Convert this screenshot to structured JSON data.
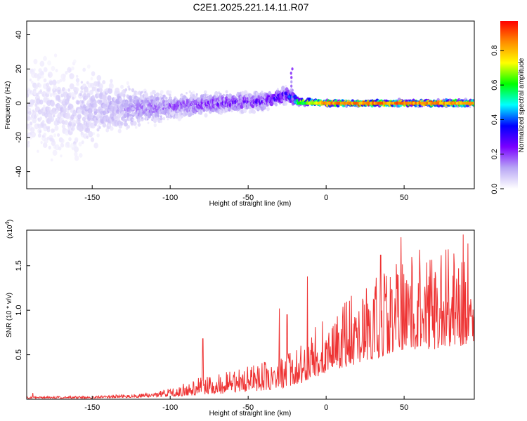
{
  "title": "C2E1.2025.221.14.11.R07",
  "chart_data": [
    {
      "type": "heatmap",
      "xlabel": "Height of straight line (km)",
      "ylabel": "Frequency (Hz)",
      "xlim": [
        -192,
        95
      ],
      "ylim": [
        -50,
        48
      ],
      "xticks": [
        -150,
        -100,
        -50,
        0,
        50
      ],
      "yticks": [
        -40,
        -20,
        0,
        20,
        40
      ],
      "colorbar": {
        "label": "Normalized spectral amplitude",
        "range": [
          0,
          0.97
        ],
        "ticks": [
          "0.0",
          "0.2",
          "0.4",
          "0.6",
          "0.8"
        ],
        "colormap": [
          "#ffffff",
          "#b8a6f5",
          "#7a00ff",
          "#0000ff",
          "#00ffff",
          "#00ff00",
          "#ffff00",
          "#ff8c00",
          "#ff0000"
        ]
      },
      "band_center_x": [
        -190,
        -160,
        -130,
        -100,
        -70,
        -40,
        -25,
        -18,
        0,
        50,
        93
      ],
      "band_center_y": [
        -2,
        -4,
        -3,
        -2,
        0,
        1,
        5,
        1,
        0,
        0,
        0
      ],
      "band_halfwidth_y": [
        45,
        40,
        18,
        10,
        8,
        7,
        6,
        3,
        2,
        2,
        2.5
      ],
      "band_peak_amplitude": [
        0.05,
        0.07,
        0.12,
        0.18,
        0.22,
        0.25,
        0.3,
        0.6,
        0.9,
        0.92,
        0.85
      ],
      "grid": false
    },
    {
      "type": "line",
      "xlabel": "Height of straight line (km)",
      "ylabel": "SNR (10 * v/v)",
      "multiplier": "(x10^4)",
      "multiplier_base": "(x10",
      "multiplier_exp": "4",
      "xlim": [
        -192,
        95
      ],
      "ylim": [
        0,
        1.9
      ],
      "xticks": [
        -150,
        -100,
        -50,
        0,
        50
      ],
      "yticks": [
        0.5,
        1.0,
        1.5
      ],
      "ytick_labels": [
        "0.5",
        "1.0",
        "1.5"
      ],
      "series": [
        {
          "color": "#ee3333",
          "envelope_x": [
            -192,
            -150,
            -120,
            -100,
            -80,
            -60,
            -40,
            -30,
            -20,
            -10,
            0,
            10,
            20,
            30,
            40,
            50,
            60,
            70,
            80,
            90,
            95
          ],
          "envelope_low": [
            0.01,
            0.01,
            0.02,
            0.03,
            0.05,
            0.07,
            0.1,
            0.12,
            0.15,
            0.22,
            0.3,
            0.35,
            0.4,
            0.45,
            0.5,
            0.55,
            0.55,
            0.55,
            0.6,
            0.6,
            0.6
          ],
          "envelope_high": [
            0.03,
            0.04,
            0.06,
            0.12,
            0.25,
            0.32,
            0.42,
            0.48,
            0.55,
            0.75,
            0.95,
            1.05,
            1.25,
            1.35,
            1.45,
            1.55,
            1.6,
            1.65,
            1.7,
            1.8,
            1.85
          ],
          "spikes_x": [
            -188,
            -79,
            -30,
            -25,
            -12,
            35,
            45,
            48,
            55,
            60,
            88,
            91
          ],
          "spikes_y": [
            0.07,
            0.68,
            1.02,
            0.95,
            1.38,
            1.62,
            1.52,
            1.82,
            1.6,
            1.68,
            1.85,
            1.75
          ]
        }
      ],
      "grid": false
    }
  ]
}
